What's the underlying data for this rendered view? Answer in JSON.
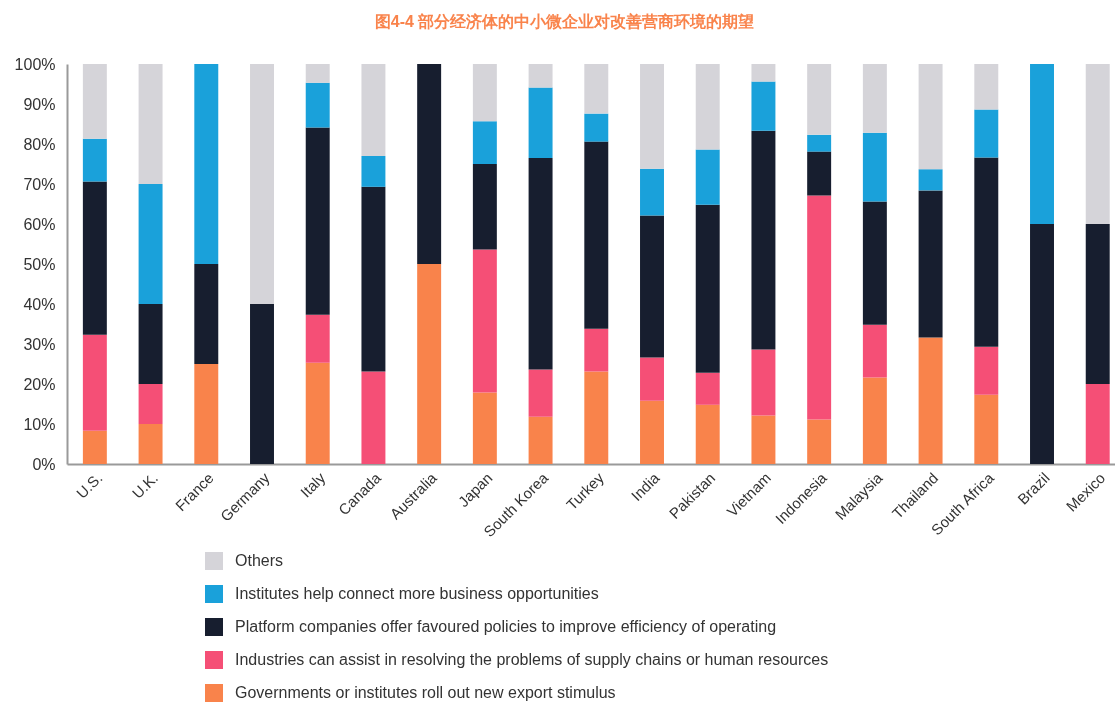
{
  "chart_data": {
    "type": "bar",
    "title": "图4-4 部分经济体的中小微企业对改善营商环境的期望",
    "categories": [
      "U.S.",
      "U.K.",
      "France",
      "Germany",
      "Italy",
      "Canada",
      "Australia",
      "Japan",
      "South Korea",
      "Turkey",
      "India",
      "Pakistan",
      "Vietnam",
      "Indonesia",
      "Malaysia",
      "Thailand",
      "South Africa",
      "Brazil",
      "Mexico"
    ],
    "stacked": true,
    "ylim": [
      0,
      100
    ],
    "yticks": [
      {
        "value": 0,
        "label": "0%"
      },
      {
        "value": 10,
        "label": "10%"
      },
      {
        "value": 20,
        "label": "20%"
      },
      {
        "value": 30,
        "label": "30%"
      },
      {
        "value": 40,
        "label": "40%"
      },
      {
        "value": 50,
        "label": "50%"
      },
      {
        "value": 60,
        "label": "60%"
      },
      {
        "value": 70,
        "label": "70%"
      },
      {
        "value": 80,
        "label": "80%"
      },
      {
        "value": 90,
        "label": "90%"
      },
      {
        "value": 100,
        "label": "100%"
      }
    ],
    "legend": "bottom",
    "series": [
      {
        "name": "Governments or institutes roll out new export stimulus",
        "color": "#f9834b",
        "values": [
          8.3,
          10,
          25,
          null,
          25.3,
          null,
          50,
          17.9,
          11.8,
          23.1,
          15.8,
          14.8,
          12.1,
          11.1,
          21.6,
          31.6,
          17.3,
          null,
          null
        ]
      },
      {
        "name": "Industries can assist in resolving the problems of supply chains or human resources",
        "color": "#f54f76",
        "values": [
          24,
          10,
          null,
          null,
          12,
          23.1,
          null,
          35.7,
          11.8,
          10.7,
          10.8,
          8,
          16.5,
          56,
          13.2,
          null,
          12,
          null,
          20
        ]
      },
      {
        "name": "Platform companies offer favoured policies to improve efficiency of operating",
        "color": "#171e2f",
        "values": [
          38.3,
          20,
          25,
          40,
          46.8,
          46.2,
          50,
          21.4,
          52.9,
          46.8,
          35.5,
          42,
          54.7,
          11,
          30.8,
          36.8,
          47.3,
          60,
          40
        ]
      },
      {
        "name": "Institutes help connect more business opportunities",
        "color": "#1aa1da",
        "values": [
          10.7,
          30,
          50,
          null,
          11.2,
          7.7,
          null,
          10.7,
          17.6,
          7,
          11.7,
          13.8,
          12.3,
          4.2,
          17.2,
          5.3,
          12,
          40,
          null
        ]
      },
      {
        "name": "Others",
        "color": "#d5d4d9",
        "values": [
          18.7,
          30,
          null,
          60,
          4.7,
          23,
          null,
          14.3,
          5.9,
          12.4,
          26.2,
          21.4,
          4.4,
          17.7,
          17.2,
          26.3,
          11.4,
          null,
          40
        ]
      }
    ]
  }
}
